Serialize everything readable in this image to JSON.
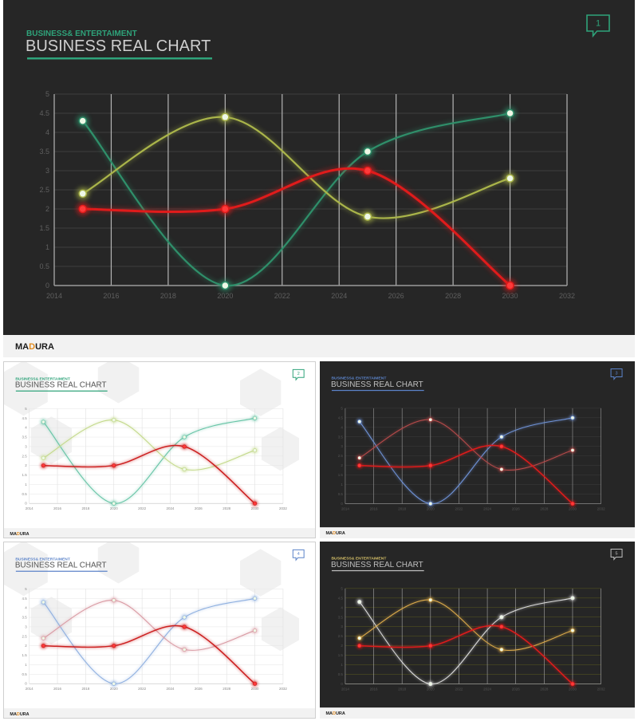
{
  "slide": {
    "subtitle": "BUSINESS& ENTERTAIMENT",
    "title": "BUSINESS REAL CHART",
    "brand": {
      "pre": "MA",
      "accent": "D",
      "post": "URA"
    },
    "page_numbers": [
      "1",
      "2",
      "3",
      "4",
      "5"
    ]
  },
  "chart_data": {
    "type": "scatter",
    "title": "",
    "xlabel": "",
    "ylabel": "",
    "xlim": [
      2014,
      2032
    ],
    "ylim": [
      0,
      5
    ],
    "x_ticks": [
      "2014",
      "2016",
      "2018",
      "2020",
      "2022",
      "2024",
      "2026",
      "2028",
      "2030",
      "2032"
    ],
    "y_ticks": [
      "0",
      "0.5",
      "1",
      "1.5",
      "2",
      "2.5",
      "3",
      "3.5",
      "4",
      "4.5",
      "5"
    ],
    "grid": true,
    "legend": "none",
    "series": [
      {
        "x": [
          2015,
          2020,
          2025,
          2030
        ],
        "values": [
          4.3,
          0,
          3.5,
          4.5
        ]
      },
      {
        "x": [
          2015,
          2020,
          2025,
          2030
        ],
        "values": [
          2.4,
          4.4,
          1.8,
          2.8
        ]
      },
      {
        "x": [
          2015,
          2020,
          2025,
          2030
        ],
        "values": [
          2.0,
          2.0,
          3.0,
          0.0
        ]
      }
    ]
  },
  "themes": [
    {
      "bg": "#262626",
      "hline": "#3d3d3d",
      "vline": "#b5b5b5",
      "axis": "#9a9a9a",
      "tick": "#5f5f5f",
      "subtitle": "#2fa37a",
      "title": "#cfcfcf",
      "underline": "#2fa37a",
      "icon": "#2fa37a",
      "footer": "#f2f2f2",
      "brand": "#1a1a1a",
      "brand_accent": "#e08a1e",
      "series": [
        "#2f8f6a",
        "#aab54a",
        "#e01b1b"
      ]
    },
    {
      "bg": "#ffffff",
      "hline": "#e6e6e6",
      "vline": "#e0e0e0",
      "axis": "#cccccc",
      "tick": "#888888",
      "subtitle": "#2fa37a",
      "title": "#555555",
      "underline": "#2fa37a",
      "icon": "#2fa37a",
      "footer": "#f2f2f2",
      "brand": "#1a1a1a",
      "brand_accent": "#e08a1e",
      "series": [
        "#66c4a6",
        "#c3d98a",
        "#cc1f1f"
      ]
    },
    {
      "bg": "#262626",
      "hline": "#3d3d3d",
      "vline": "#999999",
      "axis": "#8a8a8a",
      "tick": "#555555",
      "subtitle": "#5b83c9",
      "title": "#bfbfbf",
      "underline": "#5b83c9",
      "icon": "#5b83c9",
      "footer": "#f2f2f2",
      "brand": "#1a1a1a",
      "brand_accent": "#e08a1e",
      "series": [
        "#6f92d6",
        "#b44a4a",
        "#e01b1b"
      ]
    },
    {
      "bg": "#ffffff",
      "hline": "#e6e6e6",
      "vline": "#e0e0e0",
      "axis": "#cccccc",
      "tick": "#888888",
      "subtitle": "#5b83c9",
      "title": "#555555",
      "underline": "#5b83c9",
      "icon": "#5b83c9",
      "footer": "#f2f2f2",
      "brand": "#1a1a1a",
      "brand_accent": "#e08a1e",
      "series": [
        "#8fb0e0",
        "#d99aa3",
        "#cc1f1f"
      ]
    },
    {
      "bg": "#262626",
      "hline": "#5a5a1e",
      "vline": "#a8a8a8",
      "axis": "#9a9a9a",
      "tick": "#555555",
      "subtitle": "#d6c068",
      "title": "#bfbfbf",
      "underline": "#bfbfbf",
      "icon": "#bfbfbf",
      "footer": "#f2f2f2",
      "brand": "#1a1a1a",
      "brand_accent": "#e08a1e",
      "series": [
        "#d9d9d9",
        "#d9a84a",
        "#e01b1b"
      ]
    }
  ]
}
